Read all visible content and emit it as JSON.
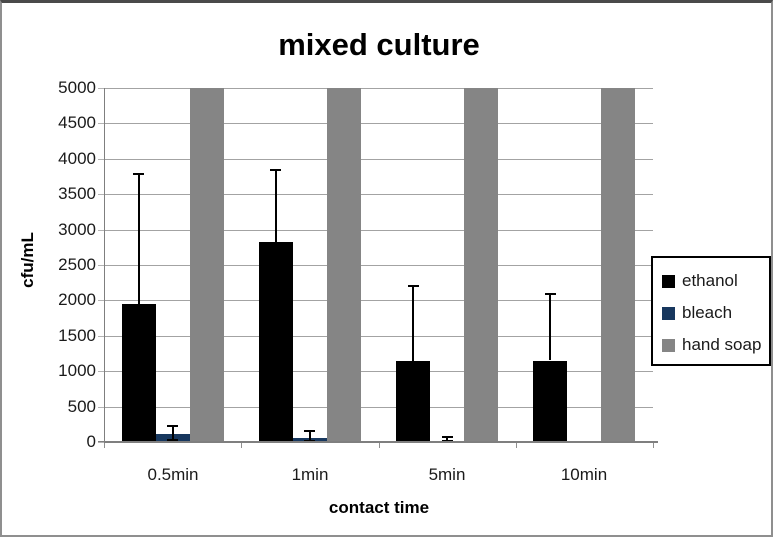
{
  "chart_data": {
    "type": "bar",
    "title": "mixed culture",
    "xlabel": "contact time",
    "ylabel": "cfu/mL",
    "categories": [
      "0.5min",
      "1min",
      "5min",
      "10min"
    ],
    "ylim": [
      0,
      5000
    ],
    "ytick_step": 500,
    "grid": "horizontal",
    "legend_position": "right",
    "series": [
      {
        "name": "ethanol",
        "color": "#000000",
        "values": [
          1950,
          2820,
          1150,
          1150
        ],
        "error_up": [
          1850,
          1030,
          1070,
          950
        ],
        "error_down": [
          null,
          null,
          null,
          null
        ]
      },
      {
        "name": "bleach",
        "color": "#17375e",
        "values": [
          120,
          60,
          20,
          0
        ],
        "error_up": [
          120,
          110,
          70,
          null
        ],
        "error_down": [
          110,
          55,
          20,
          null
        ]
      },
      {
        "name": "hand soap",
        "color": "#858585",
        "values": [
          5000,
          5000,
          5000,
          5000
        ],
        "error_up": [
          null,
          null,
          null,
          null
        ],
        "error_down": [
          null,
          null,
          null,
          null
        ],
        "note": "bars reach top of axis (clipped at 5000)"
      }
    ]
  }
}
